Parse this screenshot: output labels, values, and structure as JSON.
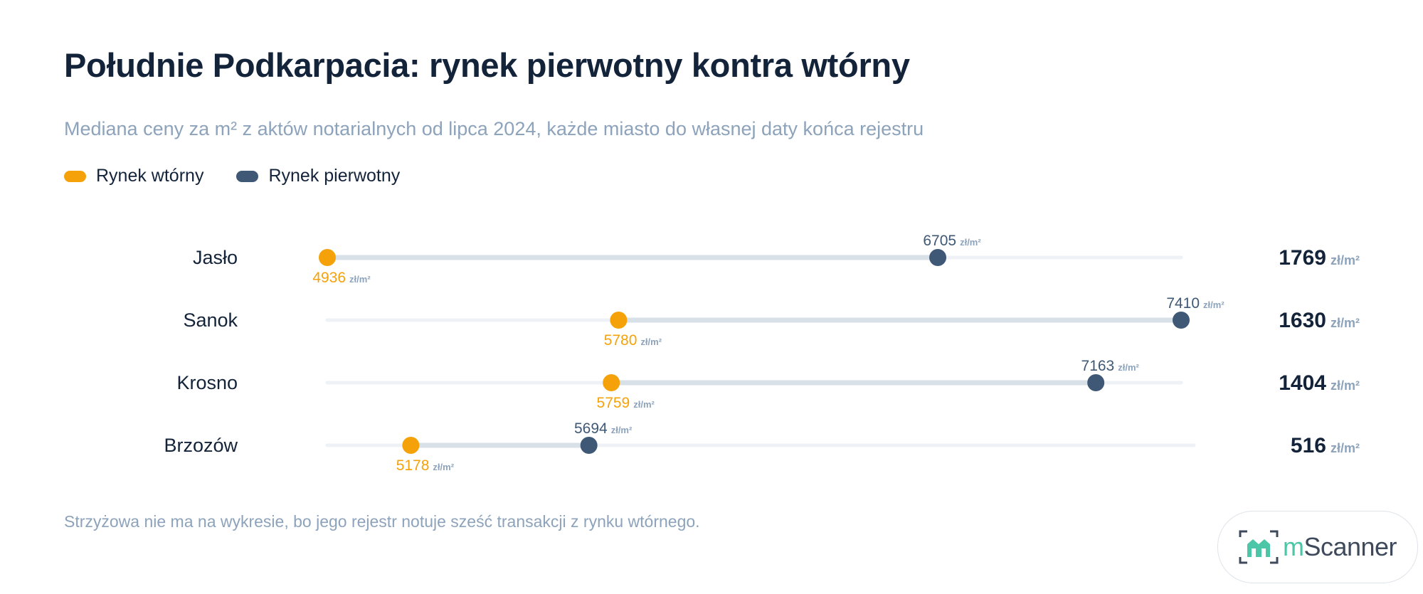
{
  "header": {
    "title": "Południe Podkarpacia: rynek pierwotny kontra wtórny",
    "subtitle": "Mediana ceny za m² z aktów notarialnych od lipca 2024, każde miasto do własnej daty końca rejestru"
  },
  "legend": [
    {
      "label": "Rynek wtórny",
      "color": "#f5a20a"
    },
    {
      "label": "Rynek pierwotny",
      "color": "#3e5875"
    }
  ],
  "chart_data": {
    "type": "dumbbell",
    "unit": "zł/m²",
    "categories": [
      "Jasło",
      "Sanok",
      "Krosno",
      "Brzozów"
    ],
    "series": [
      {
        "name": "Rynek wtórny",
        "color": "#f5a20a",
        "values": [
          4936,
          5780,
          5759,
          5178
        ]
      },
      {
        "name": "Rynek pierwotny",
        "color": "#3e5875",
        "values": [
          6705,
          7410,
          7163,
          5694
        ]
      }
    ],
    "differences": [
      1769,
      1630,
      1404,
      516
    ],
    "xlim": [
      4936,
      7410
    ],
    "grid": false,
    "legend_position": "top-left"
  },
  "footnote": "Strzyżowa nie ma na wykresie, bo jego rejestr notuje sześć transakcji z rynku wtórnego.",
  "logo": {
    "prefix": "m",
    "suffix": "Scanner"
  }
}
